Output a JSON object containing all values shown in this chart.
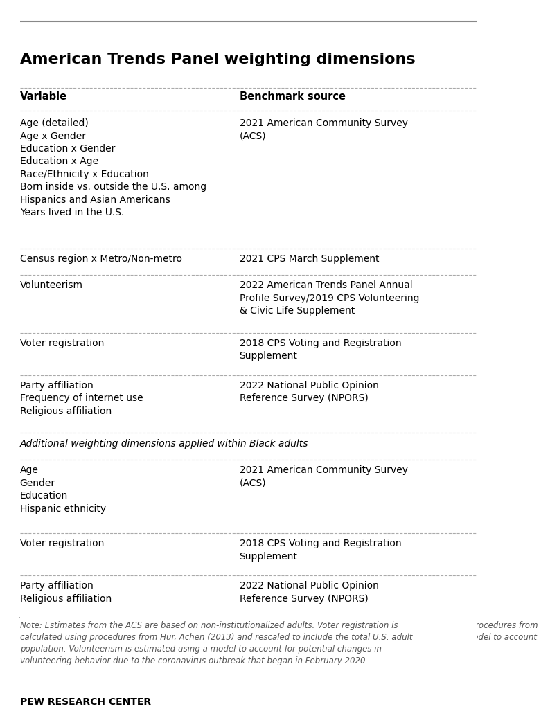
{
  "title": "American Trends Panel weighting dimensions",
  "col1_header": "Variable",
  "col2_header": "Benchmark source",
  "rows": [
    {
      "variable": "Age (detailed)\nAge x Gender\nEducation x Gender\nEducation x Age\nRace/Ethnicity x Education\nBorn inside vs. outside the U.S. among\nHispanics and Asian Americans\nYears lived in the U.S.",
      "benchmark": "2021 American Community Survey\n(ACS)",
      "separator": "dashed"
    },
    {
      "variable": "Census region x Metro/Non-metro",
      "benchmark": "2021 CPS March Supplement",
      "separator": "dashed"
    },
    {
      "variable": "Volunteerism",
      "benchmark": "2022 American Trends Panel Annual\nProfile Survey/2019 CPS Volunteering\n& Civic Life Supplement",
      "separator": "dashed"
    },
    {
      "variable": "Voter registration",
      "benchmark": "2018 CPS Voting and Registration\nSupplement",
      "separator": "dashed"
    },
    {
      "variable": "Party affiliation\nFrequency of internet use\nReligious affiliation",
      "benchmark": "2022 National Public Opinion\nReference Survey (NPORS)",
      "separator": "dashed"
    },
    {
      "variable": "Additional weighting dimensions applied within Black adults",
      "benchmark": "",
      "separator": "dashed",
      "italic": true
    },
    {
      "variable": "Age\nGender\nEducation\nHispanic ethnicity",
      "benchmark": "2021 American Community Survey\n(ACS)",
      "separator": "dashed"
    },
    {
      "variable": "Voter registration",
      "benchmark": "2018 CPS Voting and Registration\nSupplement",
      "separator": "dashed"
    },
    {
      "variable": "Party affiliation\nReligious affiliation",
      "benchmark": "2022 National Public Opinion\nReference Survey (NPORS)",
      "separator": "solid"
    }
  ],
  "note": "Note: Estimates from the ACS are based on non-institutionalized adults. Voter registration is calculated using procedures from Hur, Achen (2013) and rescaled to include the total U.S. adult population. Volunteerism is estimated using a model to account for potential changes in volunteering behavior due to the coronavirus outbreak that began in February 2020.",
  "footer": "PEW RESEARCH CENTER",
  "bg_color": "#ffffff",
  "text_color": "#000000",
  "note_color": "#555555",
  "title_color": "#000000",
  "col_split": 0.47,
  "top_line_color": "#888888",
  "separator_color": "#aaaaaa",
  "solid_line_color": "#888888"
}
